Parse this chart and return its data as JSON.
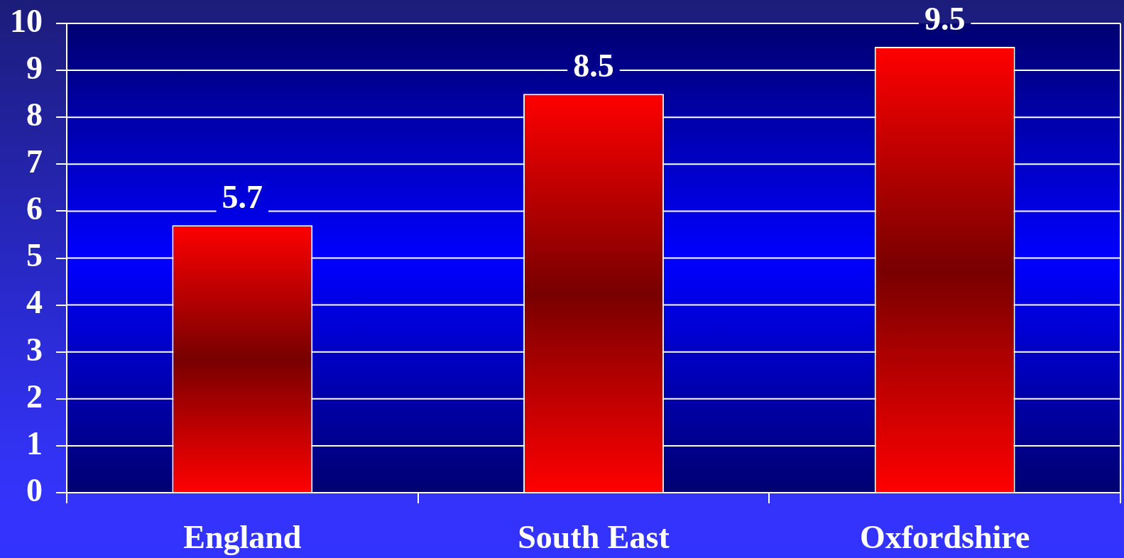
{
  "chart_data": {
    "type": "bar",
    "categories": [
      "England",
      "South East",
      "Oxfordshire"
    ],
    "values": [
      5.7,
      8.5,
      9.5
    ],
    "color": "#ff0000",
    "ylim": [
      0,
      10
    ],
    "yticks": [
      0,
      1,
      2,
      3,
      4,
      5,
      6,
      7,
      8,
      9,
      10
    ],
    "grid": "y",
    "data_labels": true
  }
}
